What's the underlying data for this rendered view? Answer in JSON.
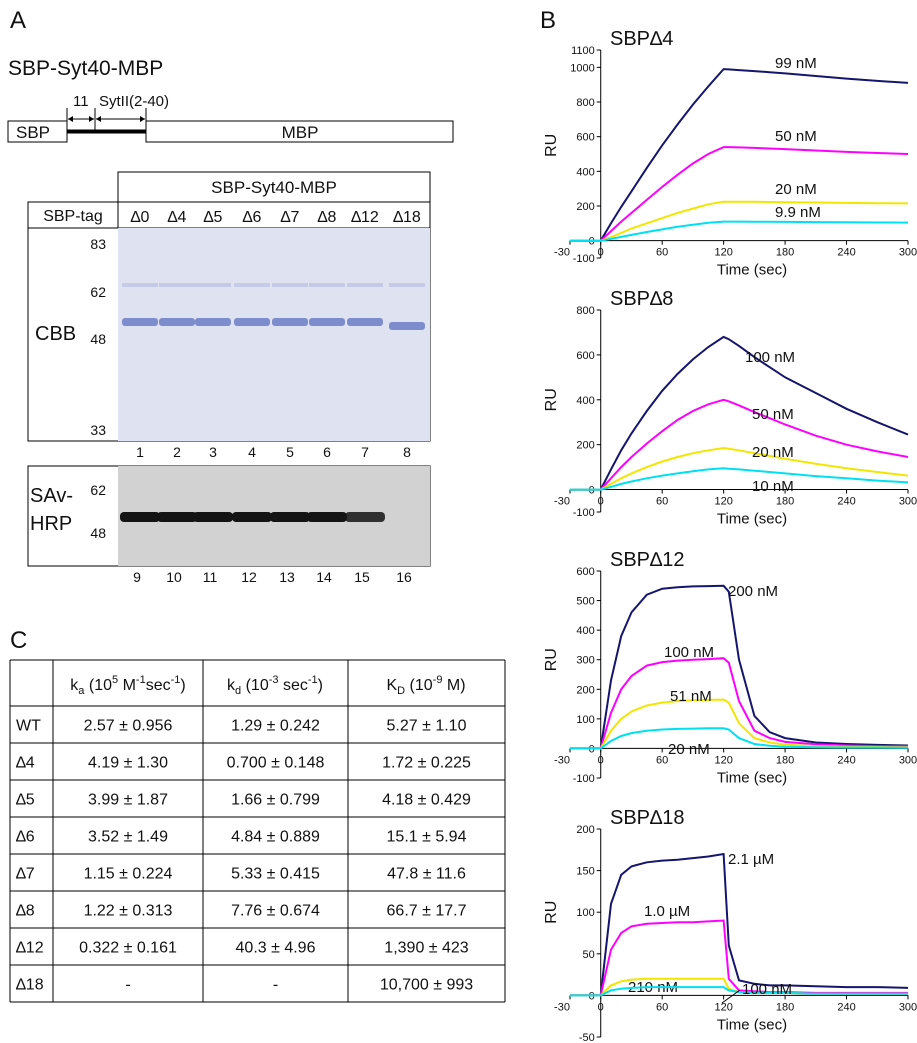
{
  "panel_labels": [
    "A",
    "B",
    "C"
  ],
  "panel_a": {
    "construct": "SBP-Syt40-MBP",
    "segment_11": "11",
    "segment_syt": "SytII(2-40)",
    "box_sbp": "SBP",
    "box_mbp": "MBP",
    "gel_header": "SBP-Syt40-MBP",
    "tag_label": "SBP-tag",
    "lanes": [
      "∆0",
      "∆4",
      "∆5",
      "∆6",
      "∆7",
      "∆8",
      "∆12",
      "∆18"
    ],
    "cbb": {
      "label": "CBB",
      "markers": [
        83,
        62,
        48,
        33
      ],
      "lane_numbers": [
        1,
        2,
        3,
        4,
        5,
        6,
        7,
        8
      ]
    },
    "hrp": {
      "label_lines": [
        "SAv-",
        "HRP"
      ],
      "markers": [
        62,
        48
      ],
      "lane_numbers": [
        9,
        10,
        11,
        12,
        13,
        14,
        15,
        16
      ]
    }
  },
  "chart_data": [
    {
      "type": "line",
      "title": "SBP∆4",
      "xlabel": "Time (sec)",
      "ylabel": "RU",
      "x": [
        -30,
        0,
        10,
        20,
        30,
        45,
        60,
        75,
        90,
        105,
        120,
        125,
        135,
        150,
        165,
        180,
        210,
        240,
        270,
        300
      ],
      "xlim": [
        -30,
        300
      ],
      "xticks": [
        -30,
        0,
        60,
        120,
        180,
        240,
        300
      ],
      "ylim": [
        -100,
        1100
      ],
      "yticks": [
        -100,
        0,
        200,
        400,
        600,
        800,
        1000,
        1100
      ],
      "series": [
        {
          "name": "99 nM",
          "color": "#15156e",
          "values": [
            0,
            0,
            100,
            195,
            285,
            420,
            550,
            670,
            785,
            890,
            990,
            988,
            984,
            978,
            972,
            965,
            950,
            935,
            922,
            910
          ]
        },
        {
          "name": "50 nM",
          "color": "#ff00ff",
          "values": [
            0,
            0,
            55,
            110,
            160,
            235,
            310,
            380,
            445,
            500,
            540,
            540,
            538,
            535,
            532,
            528,
            520,
            512,
            506,
            500
          ]
        },
        {
          "name": "20 nM",
          "color": "#f2e600",
          "values": [
            0,
            0,
            20,
            45,
            70,
            100,
            130,
            160,
            185,
            210,
            225,
            225,
            225,
            224,
            223,
            222,
            220,
            218,
            216,
            215
          ]
        },
        {
          "name": "9.9 nM",
          "color": "#00e0f0",
          "values": [
            0,
            0,
            10,
            22,
            33,
            50,
            65,
            80,
            92,
            103,
            110,
            110,
            110,
            109,
            109,
            108,
            107,
            106,
            105,
            104
          ]
        }
      ]
    },
    {
      "type": "line",
      "title": "SBP∆8",
      "xlabel": "Time (sec)",
      "ylabel": "RU",
      "x": [
        -30,
        0,
        10,
        20,
        30,
        45,
        60,
        75,
        90,
        105,
        120,
        125,
        135,
        150,
        165,
        180,
        210,
        240,
        270,
        300
      ],
      "xlim": [
        -30,
        300
      ],
      "xticks": [
        -30,
        0,
        60,
        120,
        180,
        240,
        300
      ],
      "ylim": [
        -100,
        800
      ],
      "yticks": [
        -100,
        0,
        200,
        400,
        600,
        800
      ],
      "series": [
        {
          "name": "100 nM",
          "color": "#15156e",
          "values": [
            0,
            0,
            90,
            175,
            250,
            350,
            440,
            515,
            580,
            635,
            680,
            670,
            640,
            590,
            545,
            500,
            430,
            360,
            300,
            245
          ]
        },
        {
          "name": "50 nM",
          "color": "#ff00ff",
          "values": [
            0,
            0,
            50,
            100,
            145,
            205,
            260,
            310,
            350,
            380,
            400,
            393,
            375,
            345,
            318,
            290,
            240,
            200,
            170,
            145
          ]
        },
        {
          "name": "20 nM",
          "color": "#f2e600",
          "values": [
            0,
            0,
            25,
            50,
            72,
            100,
            125,
            145,
            162,
            175,
            185,
            182,
            175,
            162,
            150,
            137,
            115,
            95,
            78,
            62
          ]
        },
        {
          "name": "10 nM",
          "color": "#00e0f0",
          "values": [
            0,
            0,
            12,
            25,
            36,
            50,
            62,
            72,
            82,
            90,
            95,
            93,
            90,
            84,
            78,
            72,
            60,
            50,
            40,
            32
          ]
        }
      ]
    },
    {
      "type": "line",
      "title": "SBP∆12",
      "xlabel": "Time (sec)",
      "ylabel": "RU",
      "x": [
        -30,
        0,
        10,
        20,
        30,
        45,
        60,
        75,
        90,
        105,
        120,
        125,
        135,
        150,
        165,
        180,
        210,
        240,
        270,
        300
      ],
      "xlim": [
        -30,
        300
      ],
      "xticks": [
        -30,
        0,
        60,
        120,
        180,
        240,
        300
      ],
      "ylim": [
        -100,
        600
      ],
      "yticks": [
        -100,
        0,
        100,
        200,
        300,
        400,
        500,
        600
      ],
      "series": [
        {
          "name": "200 nM",
          "color": "#15156e",
          "values": [
            0,
            0,
            230,
            380,
            460,
            520,
            540,
            545,
            548,
            549,
            550,
            530,
            300,
            110,
            55,
            35,
            20,
            15,
            12,
            10
          ]
        },
        {
          "name": "100 nM",
          "color": "#ff00ff",
          "values": [
            0,
            0,
            120,
            200,
            245,
            280,
            292,
            297,
            300,
            302,
            305,
            290,
            160,
            60,
            35,
            22,
            14,
            10,
            8,
            7
          ]
        },
        {
          "name": "51 nM",
          "color": "#f2e600",
          "values": [
            0,
            0,
            60,
            100,
            125,
            145,
            155,
            160,
            163,
            164,
            165,
            155,
            85,
            35,
            20,
            13,
            8,
            6,
            5,
            4
          ]
        },
        {
          "name": "20 nM",
          "color": "#00e0f0",
          "values": [
            0,
            0,
            25,
            42,
            52,
            60,
            64,
            66,
            67,
            68,
            68,
            64,
            35,
            15,
            9,
            6,
            4,
            3,
            3,
            2
          ]
        }
      ]
    },
    {
      "type": "line",
      "title": "SBP∆18",
      "xlabel": "Time (sec)",
      "ylabel": "RU",
      "x": [
        -30,
        0,
        10,
        20,
        30,
        45,
        60,
        75,
        90,
        105,
        120,
        125,
        135,
        150,
        165,
        180,
        210,
        240,
        270,
        300
      ],
      "xlim": [
        -30,
        300
      ],
      "xticks": [
        -30,
        0,
        60,
        120,
        180,
        240,
        300
      ],
      "ylim": [
        -50,
        200
      ],
      "yticks": [
        -50,
        0,
        50,
        100,
        150,
        200
      ],
      "series": [
        {
          "name": "2.1 µM",
          "color": "#15156e",
          "values": [
            0,
            0,
            110,
            145,
            155,
            160,
            162,
            163,
            165,
            167,
            170,
            60,
            18,
            14,
            12,
            12,
            11,
            10,
            10,
            9
          ]
        },
        {
          "name": "1.0 µM",
          "color": "#ff00ff",
          "values": [
            0,
            0,
            55,
            75,
            83,
            86,
            87,
            88,
            88,
            89,
            90,
            20,
            6,
            5,
            4,
            4,
            3,
            3,
            3,
            3
          ]
        },
        {
          "name": "210 nM",
          "color": "#f2e600",
          "values": [
            0,
            0,
            12,
            17,
            19,
            20,
            20,
            20,
            20,
            20,
            20,
            8,
            4,
            3,
            3,
            3,
            2,
            2,
            2,
            2
          ]
        },
        {
          "name": "100 nM",
          "color": "#00e0f0",
          "values": [
            0,
            0,
            6,
            8,
            9,
            10,
            10,
            10,
            10,
            10,
            10,
            6,
            4,
            3,
            3,
            3,
            2,
            2,
            2,
            2
          ]
        }
      ]
    }
  ],
  "table": {
    "header": [
      [
        "k",
        "a",
        " (10",
        "5",
        " M",
        "-1",
        "sec",
        "-1",
        ")"
      ],
      [
        "k",
        "d",
        " (10",
        "-3",
        " sec",
        "-1",
        ")"
      ],
      [
        "K",
        "D",
        " (10",
        "-9",
        " M)"
      ]
    ],
    "rows": [
      [
        "WT",
        "2.57 ± 0.956",
        "1.29 ± 0.242",
        "5.27 ± 1.10"
      ],
      [
        "∆4",
        "4.19 ± 1.30",
        "0.700 ± 0.148",
        "1.72 ± 0.225"
      ],
      [
        "∆5",
        "3.99 ± 1.87",
        "1.66 ± 0.799",
        "4.18 ± 0.429"
      ],
      [
        "∆6",
        "3.52 ± 1.49",
        "4.84 ± 0.889",
        "15.1 ± 5.94"
      ],
      [
        "∆7",
        "1.15 ± 0.224",
        "5.33 ± 0.415",
        "47.8 ± 11.6"
      ],
      [
        "∆8",
        "1.22 ± 0.313",
        "7.76 ± 0.674",
        "66.7 ± 17.7"
      ],
      [
        "∆12",
        "0.322 ± 0.161",
        "40.3 ± 4.96",
        "1,390 ± 423"
      ],
      [
        "∆18",
        "-",
        "-",
        "10,700 ± 993"
      ]
    ]
  }
}
